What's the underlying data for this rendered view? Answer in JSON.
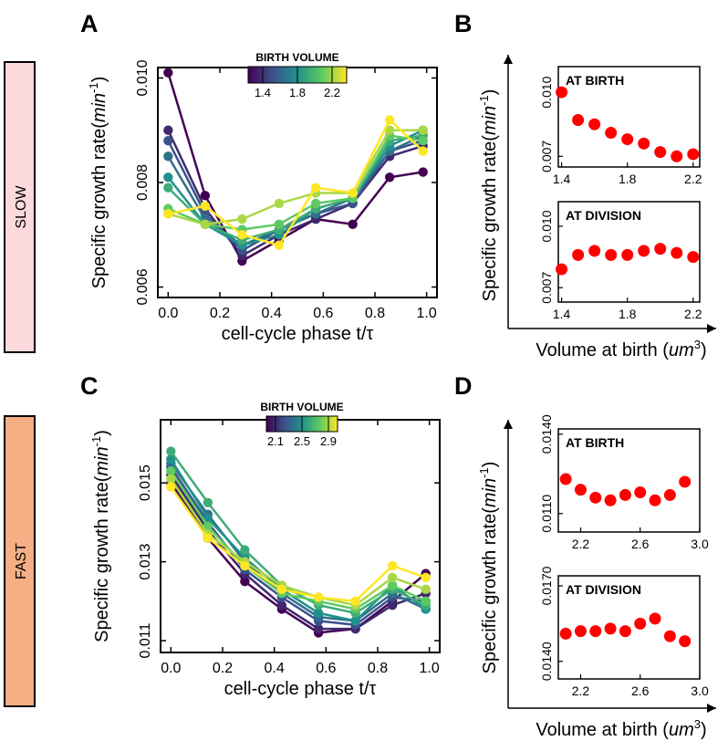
{
  "figure": {
    "panel_letters": [
      "A",
      "B",
      "C",
      "D"
    ],
    "row_labels": [
      {
        "text": "SLOW",
        "color": "#fbd9dc"
      },
      {
        "text": "FAST",
        "color": "#f6ae85"
      }
    ],
    "colormap": [
      "#440154",
      "#3b528b",
      "#21918c",
      "#5ec962",
      "#fde725"
    ]
  },
  "chart_data": [
    {
      "panel": "A",
      "type": "line",
      "xlabel": "cell-cycle phase t/τ",
      "ylabel_main": "Specific growth rate(",
      "ylabel_italic": "min",
      "ylabel_sup": "-1",
      "ylabel_end": ")",
      "xlim": [
        -0.04,
        1.04
      ],
      "ylim": [
        0.0058,
        0.0102
      ],
      "xticks": [
        0.0,
        0.2,
        0.4,
        0.6,
        0.8,
        1.0
      ],
      "xtick_labels": [
        "0.0",
        "0.2",
        "0.4",
        "0.6",
        "0.8",
        "1.0"
      ],
      "yticks": [
        0.006,
        0.008,
        0.01
      ],
      "ytick_labels": [
        "0.006",
        "0.008",
        "0.010"
      ],
      "colorbar": {
        "title": "BIRTH VOLUME",
        "ticks": [
          "1.4",
          "1.8",
          "2.2"
        ]
      },
      "x": [
        0.0,
        0.143,
        0.286,
        0.429,
        0.571,
        0.714,
        0.857,
        0.986
      ],
      "series": [
        {
          "level": 0.0,
          "values": [
            0.0101,
            0.00775,
            0.0065,
            0.0069,
            0.0073,
            0.0072,
            0.0081,
            0.0082
          ]
        },
        {
          "level": 0.12,
          "values": [
            0.009,
            0.0075,
            0.0066,
            0.007,
            0.0073,
            0.0076,
            0.0085,
            0.0087
          ]
        },
        {
          "level": 0.25,
          "values": [
            0.0088,
            0.0074,
            0.0067,
            0.0071,
            0.0074,
            0.0076,
            0.0086,
            0.0088
          ]
        },
        {
          "level": 0.37,
          "values": [
            0.0085,
            0.0073,
            0.0068,
            0.0071,
            0.0074,
            0.0077,
            0.0086,
            0.0089
          ]
        },
        {
          "level": 0.5,
          "values": [
            0.0081,
            0.0072,
            0.0068,
            0.007,
            0.0075,
            0.0077,
            0.0087,
            0.009
          ]
        },
        {
          "level": 0.62,
          "values": [
            0.0079,
            0.0072,
            0.0069,
            0.0071,
            0.0075,
            0.0077,
            0.0088,
            0.0089
          ]
        },
        {
          "level": 0.75,
          "values": [
            0.0075,
            0.0072,
            0.0071,
            0.0072,
            0.0076,
            0.0077,
            0.0089,
            0.0088
          ]
        },
        {
          "level": 0.87,
          "values": [
            0.0074,
            0.0072,
            0.0073,
            0.0076,
            0.0078,
            0.0078,
            0.009,
            0.009
          ]
        },
        {
          "level": 1.0,
          "values": [
            0.0074,
            0.00755,
            0.007,
            0.0068,
            0.0079,
            0.0078,
            0.0092,
            0.0086
          ]
        }
      ]
    },
    {
      "panel": "B",
      "type": "scatter",
      "xlabel": "Volume at birth (",
      "xlabel_italic": "um",
      "xlabel_sup": "3",
      "xlabel_end": ")",
      "ylabel_main": "Specific growth rate(",
      "ylabel_italic": "min",
      "ylabel_sup": "-1",
      "ylabel_end": ")",
      "subplots": [
        {
          "title": "AT BIRTH",
          "xlim": [
            1.38,
            2.24
          ],
          "ylim": [
            0.0065,
            0.0112
          ],
          "xticks": [
            1.4,
            1.8,
            2.2
          ],
          "xtick_labels": [
            "1.4",
            "1.8",
            "2.2"
          ],
          "yticks": [
            0.007,
            0.01
          ],
          "ytick_labels": [
            "0.007",
            "0.010"
          ],
          "x": [
            1.4,
            1.5,
            1.6,
            1.7,
            1.8,
            1.9,
            2.0,
            2.1,
            2.2
          ],
          "y": [
            0.01,
            0.0087,
            0.0085,
            0.0081,
            0.0078,
            0.0076,
            0.0072,
            0.007,
            0.0071
          ]
        },
        {
          "title": "AT  DIVISION",
          "xlim": [
            1.38,
            2.24
          ],
          "ylim": [
            0.0063,
            0.0112
          ],
          "xticks": [
            1.4,
            1.8,
            2.2
          ],
          "xtick_labels": [
            "1.4",
            "1.8",
            "2.2"
          ],
          "yticks": [
            0.007,
            0.01
          ],
          "ytick_labels": [
            "0.007",
            "0.010"
          ],
          "x": [
            1.4,
            1.5,
            1.6,
            1.7,
            1.8,
            1.9,
            2.0,
            2.1,
            2.2
          ],
          "y": [
            0.0079,
            0.0086,
            0.0088,
            0.0086,
            0.0086,
            0.0088,
            0.0089,
            0.0087,
            0.0085
          ]
        }
      ]
    },
    {
      "panel": "C",
      "type": "line",
      "xlabel": "cell-cycle phase t/τ",
      "ylabel_main": "Specific growth rate(",
      "ylabel_italic": "min",
      "ylabel_sup": "-1",
      "ylabel_end": ")",
      "xlim": [
        -0.04,
        1.04
      ],
      "ylim": [
        0.0107,
        0.0166
      ],
      "xticks": [
        0.0,
        0.2,
        0.4,
        0.6,
        0.8,
        1.0
      ],
      "xtick_labels": [
        "0.0",
        "0.2",
        "0.4",
        "0.6",
        "0.8",
        "1.0"
      ],
      "yticks": [
        0.011,
        0.013,
        0.015
      ],
      "ytick_labels": [
        "0.011",
        "0.013",
        "0.015"
      ],
      "colorbar": {
        "title": "BIRTH VOLUME",
        "ticks": [
          "2.1",
          "2.5",
          "2.9"
        ]
      },
      "x": [
        0.0,
        0.143,
        0.286,
        0.429,
        0.571,
        0.714,
        0.857,
        0.986
      ],
      "series": [
        {
          "level": 0.0,
          "values": [
            0.015,
            0.0136,
            0.0125,
            0.0118,
            0.0112,
            0.0113,
            0.012,
            0.0127
          ]
        },
        {
          "level": 0.12,
          "values": [
            0.0152,
            0.0138,
            0.0127,
            0.0119,
            0.0113,
            0.0113,
            0.0119,
            0.0122
          ]
        },
        {
          "level": 0.25,
          "values": [
            0.0154,
            0.014,
            0.0128,
            0.0121,
            0.0115,
            0.0114,
            0.0121,
            0.012
          ]
        },
        {
          "level": 0.37,
          "values": [
            0.0155,
            0.0142,
            0.013,
            0.0122,
            0.0116,
            0.0115,
            0.0122,
            0.0118
          ]
        },
        {
          "level": 0.5,
          "values": [
            0.0156,
            0.0141,
            0.0131,
            0.0123,
            0.0117,
            0.0115,
            0.0124,
            0.0118
          ]
        },
        {
          "level": 0.62,
          "values": [
            0.0158,
            0.0145,
            0.0133,
            0.0124,
            0.0119,
            0.0117,
            0.0123,
            0.0119
          ]
        },
        {
          "level": 0.75,
          "values": [
            0.0153,
            0.0139,
            0.0129,
            0.0122,
            0.012,
            0.0118,
            0.0124,
            0.012
          ]
        },
        {
          "level": 0.87,
          "values": [
            0.0151,
            0.0137,
            0.013,
            0.0124,
            0.0121,
            0.0119,
            0.0126,
            0.0123
          ]
        },
        {
          "level": 1.0,
          "values": [
            0.0149,
            0.0136,
            0.0129,
            0.0123,
            0.0121,
            0.012,
            0.0129,
            0.0126
          ]
        }
      ]
    },
    {
      "panel": "D",
      "type": "scatter",
      "xlabel": "Volume at birth (",
      "xlabel_italic": "um",
      "xlabel_sup": "3",
      "xlabel_end": ")",
      "ylabel_main": "Specific growth rate(",
      "ylabel_italic": "min",
      "ylabel_sup": "-1",
      "ylabel_end": ")",
      "subplots": [
        {
          "title": "AT BIRTH",
          "xlim": [
            2.05,
            3.0
          ],
          "ylim": [
            0.0103,
            0.0142
          ],
          "xticks": [
            2.2,
            2.6,
            3.0
          ],
          "xtick_labels": [
            "2.2",
            "2.6",
            "3.0"
          ],
          "yticks": [
            0.011,
            0.014
          ],
          "ytick_labels": [
            "0.0110",
            "0.0140"
          ],
          "x": [
            2.1,
            2.2,
            2.3,
            2.4,
            2.5,
            2.6,
            2.7,
            2.8,
            2.9
          ],
          "y": [
            0.0123,
            0.0119,
            0.0116,
            0.0115,
            0.0117,
            0.0118,
            0.0115,
            0.0117,
            0.0122
          ]
        },
        {
          "title": "AT  DIVISION",
          "xlim": [
            2.05,
            3.0
          ],
          "ylim": [
            0.0133,
            0.0174
          ],
          "xticks": [
            2.2,
            2.6,
            3.0
          ],
          "xtick_labels": [
            "2.2",
            "2.6",
            "3.0"
          ],
          "yticks": [
            0.014,
            0.017
          ],
          "ytick_labels": [
            "0.0140",
            "0.0170"
          ],
          "x": [
            2.1,
            2.2,
            2.3,
            2.4,
            2.5,
            2.6,
            2.7,
            2.8,
            2.9
          ],
          "y": [
            0.0151,
            0.0152,
            0.0152,
            0.0153,
            0.0152,
            0.0155,
            0.0157,
            0.015,
            0.0148
          ]
        }
      ]
    }
  ]
}
